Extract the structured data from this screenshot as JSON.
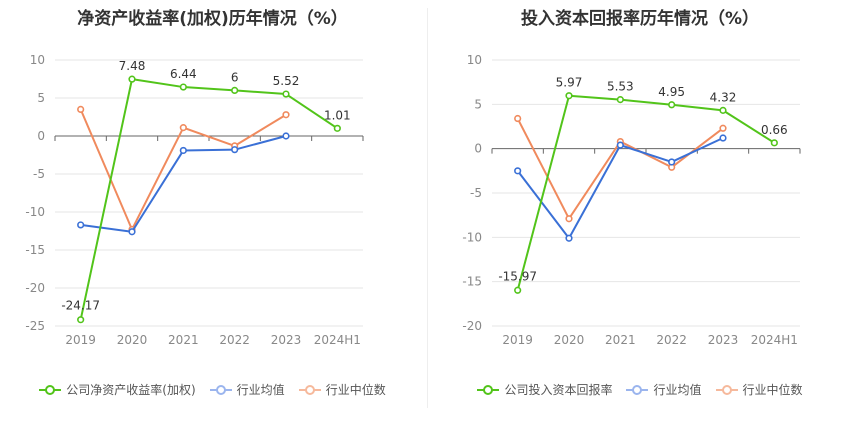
{
  "chart_data": [
    {
      "type": "line",
      "title": "净资产收益率(加权)历年情况（%）",
      "categories": [
        "2019",
        "2020",
        "2021",
        "2022",
        "2023",
        "2024H1"
      ],
      "ylim": [
        -25,
        10
      ],
      "yticks": [
        10,
        5,
        0,
        -5,
        -10,
        -15,
        -20,
        -25
      ],
      "series": [
        {
          "name": "公司净资产收益率(加权)",
          "color": "#52c41a",
          "values": [
            -24.17,
            7.48,
            6.44,
            6,
            5.52,
            1.01
          ],
          "labels": [
            "-24.17",
            "7.48",
            "6.44",
            "6",
            "5.52",
            "1.01"
          ]
        },
        {
          "name": "行业均值",
          "color": "#3a70d6",
          "values": [
            -11.7,
            -12.6,
            -1.9,
            -1.8,
            0,
            null
          ]
        },
        {
          "name": "行业中位数",
          "color": "#f08a5d",
          "values": [
            3.5,
            -12.3,
            1.1,
            -1.3,
            2.8,
            null
          ]
        }
      ]
    },
    {
      "type": "line",
      "title": "投入资本回报率历年情况（%）",
      "categories": [
        "2019",
        "2020",
        "2021",
        "2022",
        "2023",
        "2024H1"
      ],
      "ylim": [
        -20,
        10
      ],
      "yticks": [
        10,
        5,
        0,
        -5,
        -10,
        -15,
        -20
      ],
      "series": [
        {
          "name": "公司投入资本回报率",
          "color": "#52c41a",
          "values": [
            -15.97,
            5.97,
            5.53,
            4.95,
            4.32,
            0.66
          ],
          "labels": [
            "-15.97",
            "5.97",
            "5.53",
            "4.95",
            "4.32",
            "0.66"
          ]
        },
        {
          "name": "行业均值",
          "color": "#3a70d6",
          "values": [
            -2.5,
            -10.1,
            0.4,
            -1.5,
            1.2,
            null
          ]
        },
        {
          "name": "行业中位数",
          "color": "#f08a5d",
          "values": [
            3.4,
            -7.9,
            0.8,
            -2.1,
            2.3,
            null
          ]
        }
      ]
    }
  ]
}
